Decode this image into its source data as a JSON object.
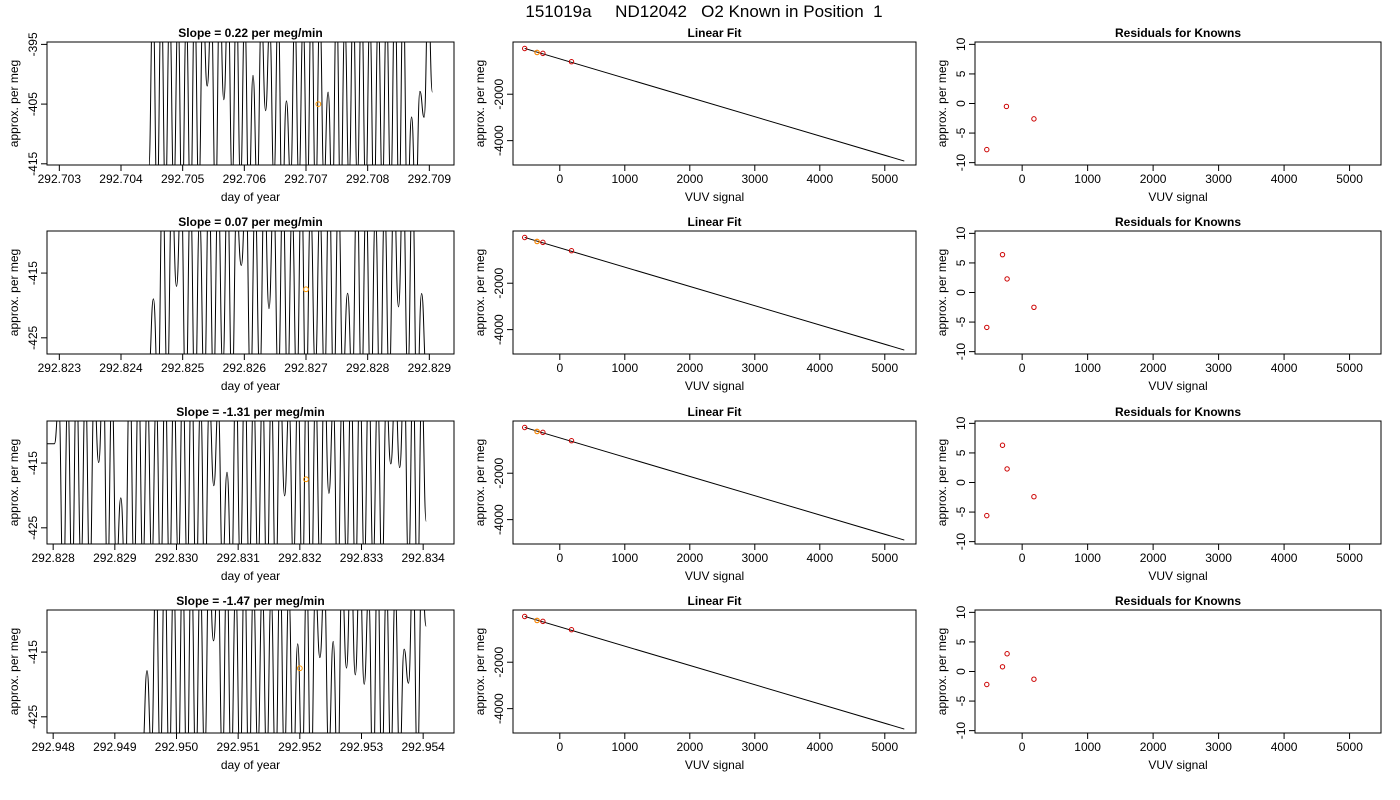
{
  "figure": {
    "title": "151019a     ND12042   O2 Known in Position  1"
  },
  "chart_data": [
    {
      "row": 0,
      "col": 0,
      "type": "line",
      "title": "Slope =  0.22  per meg/min",
      "xlabel": "day of year",
      "ylabel": "approx. per meg",
      "xlim": [
        292.7028,
        292.7094
      ],
      "ylim": [
        -415.2,
        -394.6
      ],
      "xticks": [
        "292.703",
        "292.704",
        "292.705",
        "292.706",
        "292.707",
        "292.708",
        "292.709"
      ],
      "xtick_values": [
        292.703,
        292.704,
        292.705,
        292.706,
        292.707,
        292.708,
        292.709
      ],
      "yticks": [
        "-395",
        "-405",
        "-415"
      ],
      "ytick_values": [
        -395,
        -405,
        -415
      ],
      "trace": {
        "x_start": 292.70445,
        "x_end": 292.70905,
        "start_value": -416,
        "end_value": -403,
        "left_value": -416,
        "cycles": 34,
        "seed": 3
      },
      "marker": {
        "x": 292.7072,
        "y": -405,
        "color": "#ff9900"
      }
    },
    {
      "row": 0,
      "col": 1,
      "type": "line",
      "title": "Linear Fit",
      "xlabel": "VUV signal",
      "ylabel": "approx. per meg",
      "xlim": [
        -720,
        5480
      ],
      "ylim": [
        -5050,
        250
      ],
      "xticks": [
        "0",
        "1000",
        "2000",
        "3000",
        "4000",
        "5000"
      ],
      "xtick_values": [
        0,
        1000,
        2000,
        3000,
        4000,
        5000
      ],
      "yticks": [
        "-2000",
        "-4000"
      ],
      "ytick_values": [
        -2000,
        -4000
      ],
      "fit_line": {
        "x": [
          -540,
          5300
        ],
        "y": [
          -28,
          -4880
        ]
      },
      "points": {
        "x": [
          -540,
          -350,
          -260,
          180
        ],
        "y": [
          -30,
          -200,
          -240,
          -600
        ],
        "color": "#cc0000"
      },
      "highlight": {
        "x": -350,
        "y": -200,
        "color": "#ff9900"
      }
    },
    {
      "row": 0,
      "col": 2,
      "type": "scatter",
      "title": "Residuals for Knowns",
      "xlabel": "VUV signal",
      "ylabel": "approx. per meg",
      "xlim": [
        -720,
        5480
      ],
      "ylim": [
        -10.4,
        10.4
      ],
      "xticks": [
        "0",
        "1000",
        "2000",
        "3000",
        "4000",
        "5000"
      ],
      "xtick_values": [
        0,
        1000,
        2000,
        3000,
        4000,
        5000
      ],
      "yticks": [
        "10",
        "5",
        "0",
        "-5",
        "-10"
      ],
      "ytick_values": [
        10,
        5,
        0,
        -5,
        -10
      ],
      "points": {
        "x": [
          -540,
          -240,
          180
        ],
        "y": [
          -7.8,
          -0.5,
          -2.6
        ],
        "color": "#cc0000"
      }
    },
    {
      "row": 1,
      "col": 0,
      "type": "line",
      "title": "Slope =  0.07  per meg/min",
      "xlabel": "day of year",
      "ylabel": "approx. per meg",
      "xlim": [
        292.8228,
        292.8294
      ],
      "ylim": [
        -427.5,
        -408.5
      ],
      "xticks": [
        "292.823",
        "292.824",
        "292.825",
        "292.826",
        "292.827",
        "292.828",
        "292.829"
      ],
      "xtick_values": [
        292.823,
        292.824,
        292.825,
        292.826,
        292.827,
        292.828,
        292.829
      ],
      "yticks": [
        "-415",
        "-425"
      ],
      "ytick_values": [
        -415,
        -425
      ],
      "trace": {
        "x_start": 292.82445,
        "x_end": 292.82895,
        "start_value": -430,
        "end_value": -430,
        "left_value": -430,
        "cycles": 30,
        "seed": 7
      },
      "marker": {
        "x": 292.827,
        "y": -417.5,
        "color": "#ff9900"
      }
    },
    {
      "row": 1,
      "col": 1,
      "type": "line",
      "title": "Linear Fit",
      "xlabel": "VUV signal",
      "ylabel": "approx. per meg",
      "xlim": [
        -720,
        5480
      ],
      "ylim": [
        -5050,
        250
      ],
      "xticks": [
        "0",
        "1000",
        "2000",
        "3000",
        "4000",
        "5000"
      ],
      "xtick_values": [
        0,
        1000,
        2000,
        3000,
        4000,
        5000
      ],
      "yticks": [
        "-2000",
        "-4000"
      ],
      "ytick_values": [
        -2000,
        -4000
      ],
      "fit_line": {
        "x": [
          -540,
          5300
        ],
        "y": [
          -28,
          -4880
        ]
      },
      "points": {
        "x": [
          -540,
          -350,
          -260,
          180
        ],
        "y": [
          -30,
          -200,
          -240,
          -600
        ],
        "color": "#cc0000"
      },
      "highlight": {
        "x": -350,
        "y": -200,
        "color": "#ff9900"
      }
    },
    {
      "row": 1,
      "col": 2,
      "type": "scatter",
      "title": "Residuals for Knowns",
      "xlabel": "VUV signal",
      "ylabel": "approx. per meg",
      "xlim": [
        -720,
        5480
      ],
      "ylim": [
        -10.4,
        10.4
      ],
      "xticks": [
        "0",
        "1000",
        "2000",
        "3000",
        "4000",
        "5000"
      ],
      "xtick_values": [
        0,
        1000,
        2000,
        3000,
        4000,
        5000
      ],
      "yticks": [
        "10",
        "5",
        "0",
        "-5",
        "-10"
      ],
      "ytick_values": [
        10,
        5,
        0,
        -5,
        -10
      ],
      "points": {
        "x": [
          -540,
          -300,
          -230,
          180
        ],
        "y": [
          -5.9,
          6.4,
          2.3,
          -2.5
        ],
        "color": "#cc0000"
      }
    },
    {
      "row": 2,
      "col": 0,
      "type": "line",
      "title": "Slope =  -1.31  per meg/min",
      "xlabel": "day of year",
      "ylabel": "approx. per meg",
      "xlim": [
        292.8279,
        292.8345
      ],
      "ylim": [
        -427.5,
        -408.5
      ],
      "xticks": [
        "292.828",
        "292.829",
        "292.830",
        "292.831",
        "292.832",
        "292.833",
        "292.834"
      ],
      "xtick_values": [
        292.828,
        292.829,
        292.83,
        292.831,
        292.832,
        292.833,
        292.834
      ],
      "yticks": [
        "-415",
        "-425"
      ],
      "ytick_values": [
        -415,
        -425
      ],
      "trace": {
        "x_start": 292.82802,
        "x_end": 292.83405,
        "start_value": -412,
        "end_value": -424,
        "left_value": -412,
        "cycles": 42,
        "seed": 11
      },
      "marker": {
        "x": 292.8321,
        "y": -417.5,
        "color": "#ff9900"
      }
    },
    {
      "row": 2,
      "col": 1,
      "type": "line",
      "title": "Linear Fit",
      "xlabel": "VUV signal",
      "ylabel": "approx. per meg",
      "xlim": [
        -720,
        5480
      ],
      "ylim": [
        -5050,
        250
      ],
      "xticks": [
        "0",
        "1000",
        "2000",
        "3000",
        "4000",
        "5000"
      ],
      "xtick_values": [
        0,
        1000,
        2000,
        3000,
        4000,
        5000
      ],
      "yticks": [
        "-2000",
        "-4000"
      ],
      "ytick_values": [
        -2000,
        -4000
      ],
      "fit_line": {
        "x": [
          -540,
          5300
        ],
        "y": [
          -28,
          -4880
        ]
      },
      "points": {
        "x": [
          -540,
          -350,
          -260,
          180
        ],
        "y": [
          -30,
          -200,
          -240,
          -600
        ],
        "color": "#cc0000"
      },
      "highlight": {
        "x": -350,
        "y": -200,
        "color": "#ff9900"
      }
    },
    {
      "row": 2,
      "col": 2,
      "type": "scatter",
      "title": "Residuals for Knowns",
      "xlabel": "VUV signal",
      "ylabel": "approx. per meg",
      "xlim": [
        -720,
        5480
      ],
      "ylim": [
        -10.4,
        10.4
      ],
      "xticks": [
        "0",
        "1000",
        "2000",
        "3000",
        "4000",
        "5000"
      ],
      "xtick_values": [
        0,
        1000,
        2000,
        3000,
        4000,
        5000
      ],
      "yticks": [
        "10",
        "5",
        "0",
        "-5",
        "-10"
      ],
      "ytick_values": [
        10,
        5,
        0,
        -5,
        -10
      ],
      "points": {
        "x": [
          -540,
          -300,
          -230,
          180
        ],
        "y": [
          -5.6,
          6.3,
          2.3,
          -2.4
        ],
        "color": "#cc0000"
      }
    },
    {
      "row": 3,
      "col": 0,
      "type": "line",
      "title": "Slope =  -1.47  per meg/min",
      "xlabel": "day of year",
      "ylabel": "approx. per meg",
      "xlim": [
        292.9479,
        292.9545
      ],
      "ylim": [
        -427.5,
        -408.5
      ],
      "xticks": [
        "292.948",
        "292.949",
        "292.950",
        "292.951",
        "292.952",
        "292.953",
        "292.954"
      ],
      "xtick_values": [
        292.948,
        292.949,
        292.95,
        292.951,
        292.952,
        292.953,
        292.954
      ],
      "yticks": [
        "-415",
        "-425"
      ],
      "ytick_values": [
        -415,
        -425
      ],
      "trace": {
        "x_start": 292.94945,
        "x_end": 292.95405,
        "start_value": -430,
        "end_value": -411,
        "left_value": -430,
        "cycles": 32,
        "seed": 17
      },
      "marker": {
        "x": 292.952,
        "y": -417.5,
        "color": "#ff9900"
      }
    },
    {
      "row": 3,
      "col": 1,
      "type": "line",
      "title": "Linear Fit",
      "xlabel": "VUV signal",
      "ylabel": "approx. per meg",
      "xlim": [
        -720,
        5480
      ],
      "ylim": [
        -5050,
        250
      ],
      "xticks": [
        "0",
        "1000",
        "2000",
        "3000",
        "4000",
        "5000"
      ],
      "xtick_values": [
        0,
        1000,
        2000,
        3000,
        4000,
        5000
      ],
      "yticks": [
        "-2000",
        "-4000"
      ],
      "ytick_values": [
        -2000,
        -4000
      ],
      "fit_line": {
        "x": [
          -540,
          5300
        ],
        "y": [
          -28,
          -4880
        ]
      },
      "points": {
        "x": [
          -540,
          -350,
          -260,
          180
        ],
        "y": [
          -30,
          -200,
          -240,
          -600
        ],
        "color": "#cc0000"
      },
      "highlight": {
        "x": -350,
        "y": -200,
        "color": "#ff9900"
      }
    },
    {
      "row": 3,
      "col": 2,
      "type": "scatter",
      "title": "Residuals for Knowns",
      "xlabel": "VUV signal",
      "ylabel": "approx. per meg",
      "xlim": [
        -720,
        5480
      ],
      "ylim": [
        -10.4,
        10.4
      ],
      "xticks": [
        "0",
        "1000",
        "2000",
        "3000",
        "4000",
        "5000"
      ],
      "xtick_values": [
        0,
        1000,
        2000,
        3000,
        4000,
        5000
      ],
      "yticks": [
        "10",
        "5",
        "0",
        "-5",
        "-10"
      ],
      "ytick_values": [
        10,
        5,
        0,
        -5,
        -10
      ],
      "points": {
        "x": [
          -540,
          -300,
          -230,
          180
        ],
        "y": [
          -2.2,
          0.8,
          3.0,
          -1.3
        ],
        "color": "#cc0000"
      }
    }
  ]
}
